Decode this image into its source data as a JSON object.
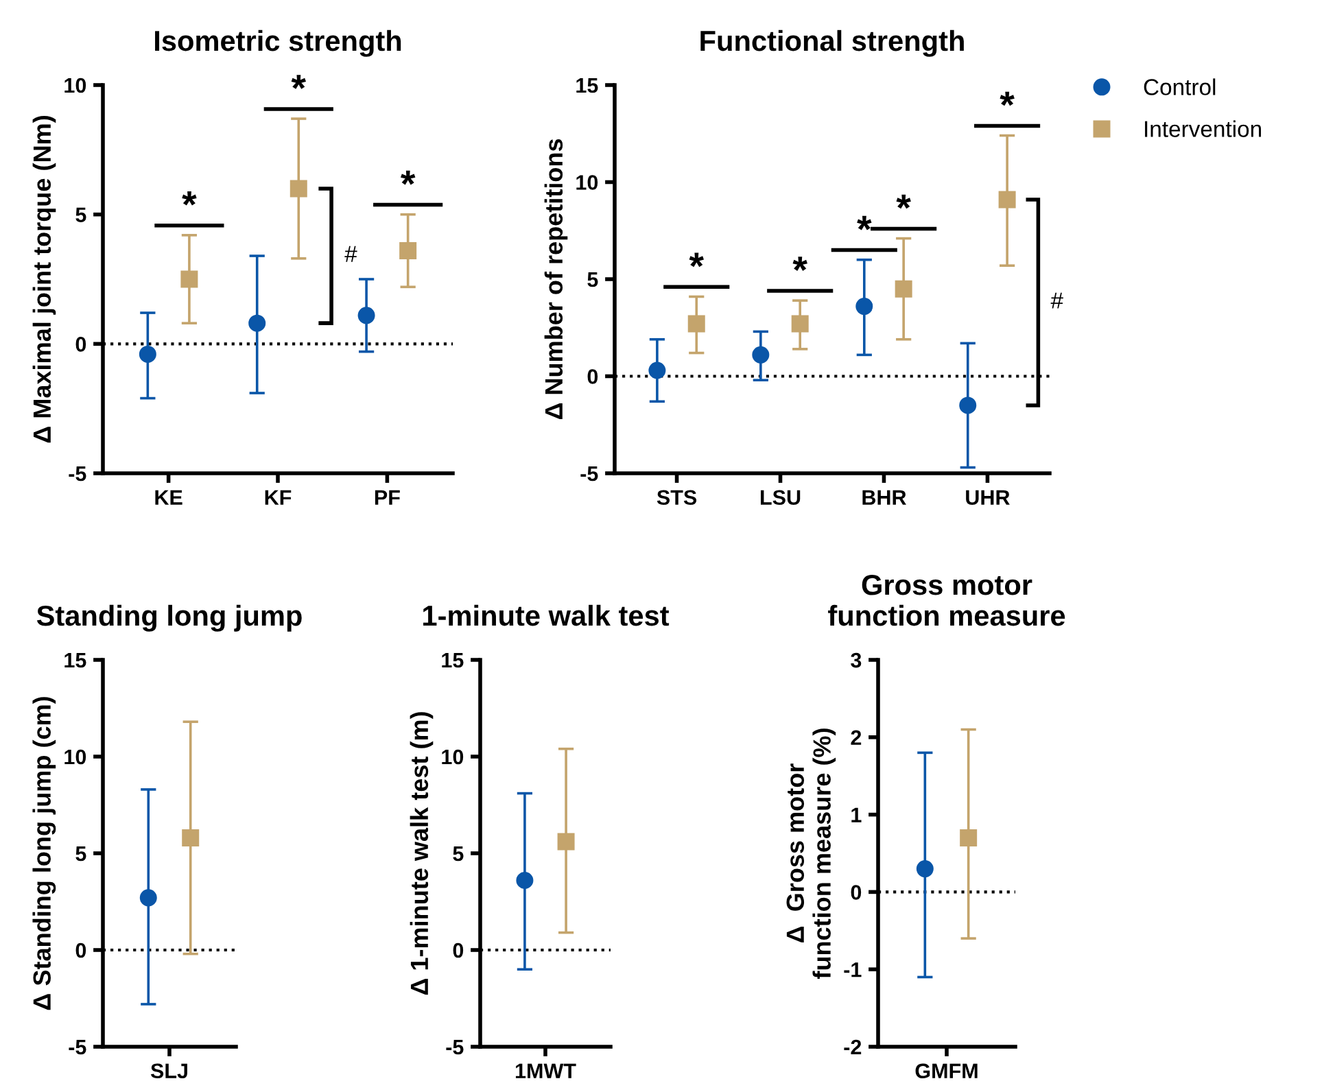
{
  "chart_data": [
    {
      "type": "scatter",
      "title": "Isometric strength",
      "ylabel": "Δ Maximal joint torque (Nm)",
      "categories": [
        "KE",
        "KF",
        "PF"
      ],
      "ylim": [
        -5,
        10
      ],
      "yticks": [
        -5,
        0,
        5,
        10
      ],
      "grid": false,
      "legend": false,
      "series": [
        {
          "color": "#0a56a8",
          "marker": "circle",
          "values": [
            -0.4,
            0.8,
            1.1
          ],
          "errors": [
            [
              -2.1,
              1.2
            ],
            [
              -1.9,
              3.4
            ],
            [
              -0.3,
              2.5
            ]
          ]
        },
        {
          "color": "#c4a46c",
          "marker": "square",
          "values": [
            2.5,
            6.0,
            3.6
          ],
          "errors": [
            [
              0.8,
              4.2
            ],
            [
              3.3,
              8.7
            ],
            [
              2.2,
              5.0
            ]
          ]
        }
      ],
      "ref_lines": [
        {
          "axis": "y",
          "value": 0,
          "line_style": "dotted",
          "color": "#000000"
        }
      ],
      "annotations": [
        "*",
        "*",
        "*",
        "#"
      ]
    },
    {
      "type": "scatter",
      "title": "Functional strength",
      "ylabel": "Δ Number of repetitions",
      "categories": [
        "STS",
        "LSU",
        "BHR",
        "UHR"
      ],
      "ylim": [
        -5,
        15
      ],
      "yticks": [
        -5,
        0,
        5,
        10,
        15
      ],
      "grid": false,
      "legend": "top right",
      "series": [
        {
          "name": "Control",
          "color": "#0a56a8",
          "marker": "circle",
          "values": [
            0.3,
            1.1,
            3.6,
            -1.5
          ],
          "errors": [
            [
              -1.3,
              1.9
            ],
            [
              -0.2,
              2.3
            ],
            [
              1.1,
              6.0
            ],
            [
              -4.7,
              1.7
            ]
          ]
        },
        {
          "name": "Intervention",
          "color": "#c4a46c",
          "marker": "square",
          "values": [
            2.7,
            2.7,
            4.5,
            9.1
          ],
          "errors": [
            [
              1.2,
              4.1
            ],
            [
              1.4,
              3.9
            ],
            [
              1.9,
              7.1
            ],
            [
              5.7,
              12.4
            ]
          ]
        }
      ],
      "ref_lines": [
        {
          "axis": "y",
          "value": 0,
          "line_style": "dotted",
          "color": "#000000"
        }
      ],
      "annotations": [
        "*",
        "*",
        "*",
        "*",
        "*",
        "#"
      ]
    },
    {
      "type": "scatter",
      "title": "Standing long jump",
      "ylabel": "Δ Standing long jump (cm)",
      "categories": [
        "SLJ"
      ],
      "ylim": [
        -5,
        15
      ],
      "yticks": [
        -5,
        0,
        5,
        10,
        15
      ],
      "grid": false,
      "legend": false,
      "series": [
        {
          "color": "#0a56a8",
          "marker": "circle",
          "values": [
            2.7
          ],
          "errors": [
            [
              -2.8,
              8.3
            ]
          ]
        },
        {
          "color": "#c4a46c",
          "marker": "square",
          "values": [
            5.8
          ],
          "errors": [
            [
              -0.2,
              11.8
            ]
          ]
        }
      ],
      "ref_lines": [
        {
          "axis": "y",
          "value": 0,
          "line_style": "dotted",
          "color": "#000000"
        }
      ]
    },
    {
      "type": "scatter",
      "title": "1-minute walk test",
      "ylabel": "Δ 1-minute walk test (m)",
      "categories": [
        "1MWT"
      ],
      "ylim": [
        -5,
        15
      ],
      "yticks": [
        -5,
        0,
        5,
        10,
        15
      ],
      "grid": false,
      "legend": false,
      "series": [
        {
          "color": "#0a56a8",
          "marker": "circle",
          "values": [
            3.6
          ],
          "errors": [
            [
              -1.0,
              8.1
            ]
          ]
        },
        {
          "color": "#c4a46c",
          "marker": "square",
          "values": [
            5.6
          ],
          "errors": [
            [
              0.9,
              10.4
            ]
          ]
        }
      ],
      "ref_lines": [
        {
          "axis": "y",
          "value": 0,
          "line_style": "dotted",
          "color": "#000000"
        }
      ]
    },
    {
      "type": "scatter",
      "title": "Gross motor\nfunction measure",
      "ylabel": "Δ  Gross motor\nfunction measure (%)",
      "categories": [
        "GMFM"
      ],
      "ylim": [
        -2,
        3
      ],
      "yticks": [
        -2,
        -1,
        0,
        1,
        2,
        3
      ],
      "grid": false,
      "legend": false,
      "series": [
        {
          "color": "#0a56a8",
          "marker": "circle",
          "values": [
            0.3
          ],
          "errors": [
            [
              -1.1,
              1.8
            ]
          ]
        },
        {
          "color": "#c4a46c",
          "marker": "square",
          "values": [
            0.7
          ],
          "errors": [
            [
              -0.6,
              2.1
            ]
          ]
        }
      ],
      "ref_lines": [
        {
          "axis": "y",
          "value": 0,
          "line_style": "dotted",
          "color": "#000000"
        }
      ]
    }
  ]
}
